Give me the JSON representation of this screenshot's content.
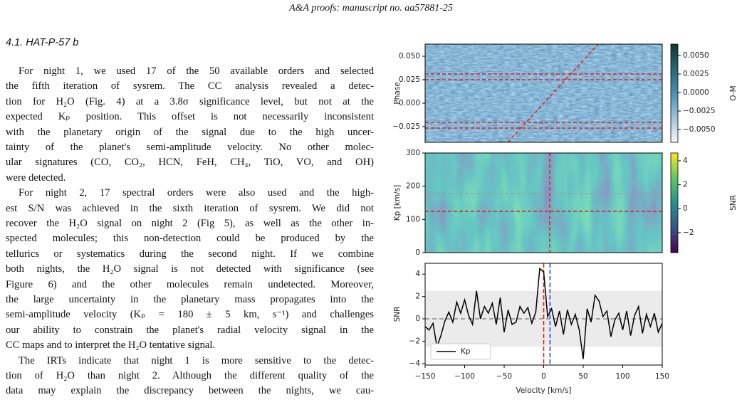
{
  "header": "A&A proofs: manuscript no. aa57881-25",
  "section_title": "4.1. HAT-P-57 b",
  "paragraphs": [
    [
      "For night 1, we used 17 of the 50 available orders and selected",
      "the fifth iteration of sysrem. The CC analysis revealed a detec-",
      "tion for H₂O (Fig. 4) at a 3.8σ significance level, but not at the",
      "expected Kₚ position. This offset is not necessarily inconsistent",
      "with the planetary origin of the signal due to the high uncer-",
      "tainty of the planet's semi-amplitude velocity. No other molec-",
      "ular signatures (CO, CO₂, HCN, FeH, CH₄, TiO, VO, and OH)",
      "were detected."
    ],
    [
      "For night 2, 17 spectral orders were also used and the high-",
      "est S/N was achieved in the sixth iteration of sysrem. We did not",
      "recover the H₂O signal on night 2 (Fig 5), as well as the other in-",
      "spected molecules; this non-detection could be produced by the",
      "tellurics or systematics during the second night. If we combine",
      "both nights, the H₂O signal is not detected with significance (see",
      "Figure 6) and the other molecules remain undetected. Moreover,",
      "the large uncertainty in the planetary mass propagates into the",
      "semi-amplitude velocity (Kₚ = 180 ± 5 km, s⁻¹) and challenges",
      "our ability to constrain the planet's radial velocity signal in the",
      "CC maps and to interpret the H₂O tentative signal."
    ],
    [
      "The IRTs indicate that night 1 is more sensitive to the detec-",
      "tion of H₂O than night 2. Although the different quality of the",
      "data may explain the discrepancy between the nights, we cau-"
    ]
  ],
  "figure": {
    "phase_panel": {
      "ylabel": "Phase",
      "ylim": [
        -0.0417,
        0.0629
      ],
      "yticks": [
        {
          "value": 0.05,
          "label": "0.050"
        },
        {
          "value": 0.025,
          "label": "0.025"
        },
        {
          "value": 0,
          "label": "0.000"
        },
        {
          "value": -0.025,
          "label": "−0.025"
        }
      ],
      "colorbar": {
        "label": "O-M",
        "lim": [
          -0.00673,
          0.00654
        ],
        "ticks": [
          {
            "value": 0.005,
            "label": "0.0050"
          },
          {
            "value": 0.0025,
            "label": "0.0025"
          },
          {
            "value": 0,
            "label": "0.0000"
          },
          {
            "value": -0.0025,
            "label": "−0.0025"
          },
          {
            "value": -0.005,
            "label": "−0.0050"
          }
        ]
      }
    },
    "kp_panel": {
      "ylabel": "Kp [km/s]",
      "ylim": [
        0,
        300
      ],
      "yticks": [
        0,
        100,
        200,
        300
      ],
      "colorbar": {
        "label": "SNR",
        "lim": [
          -3.67,
          4.65
        ],
        "ticks": [
          4,
          2,
          0,
          {
            "value": -2,
            "label": "−2"
          }
        ]
      }
    },
    "snr_panel": {
      "type": "line",
      "ylabel": "SNR",
      "xlabel": "Velocity [km/s]",
      "xlim": [
        -150,
        150
      ],
      "ylim": [
        -4.14,
        4.97
      ],
      "xticks": [
        {
          "value": -150,
          "label": "−150"
        },
        {
          "value": -100,
          "label": "−100"
        },
        {
          "value": -50,
          "label": "−50"
        },
        0,
        50,
        100,
        150
      ],
      "yticks": [
        4,
        2,
        0,
        {
          "value": -2,
          "label": "−2"
        },
        {
          "value": -4,
          "label": "−4"
        }
      ],
      "x": [
        -150,
        -145,
        -140,
        -135,
        -130,
        -125,
        -120,
        -115,
        -110,
        -105,
        -100,
        -95,
        -90,
        -85,
        -80,
        -75,
        -70,
        -65,
        -60,
        -55,
        -50,
        -45,
        -40,
        -35,
        -30,
        -25,
        -20,
        -15,
        -10,
        -5,
        0,
        5,
        10,
        15,
        20,
        25,
        30,
        35,
        40,
        45,
        50,
        55,
        60,
        65,
        70,
        75,
        80,
        85,
        90,
        95,
        100,
        105,
        110,
        115,
        120,
        125,
        130,
        135,
        140,
        145,
        150
      ],
      "series": [
        {
          "name": "Kp",
          "color": "#000000",
          "values": [
            -0.7,
            -1.0,
            -0.4,
            -2.5,
            -1.5,
            -0.2,
            0.6,
            -0.3,
            1.5,
            0.5,
            1.7,
            0.3,
            -0.5,
            2.5,
            0,
            1.1,
            0.5,
            1.4,
            -0.5,
            1.9,
            -1.2,
            0.8,
            -0.5,
            -0.3,
            1.1,
            0.5,
            1.0,
            -0.4,
            0.6,
            4.5,
            4.2,
            0.2,
            0.9,
            -0.7,
            0.7,
            -1.4,
            0.8,
            -0.5,
            0.4,
            -1.0,
            -3.6,
            0.9,
            -0.3,
            2.1,
            1.6,
            0.2,
            0.7,
            -1.6,
            -0.1,
            0.5,
            -1.0,
            0.7,
            -1.5,
            0.3,
            1.1,
            -1.3,
            0.4,
            -0.7,
            0.5,
            -1.2,
            -0.4
          ]
        }
      ]
    }
  }
}
